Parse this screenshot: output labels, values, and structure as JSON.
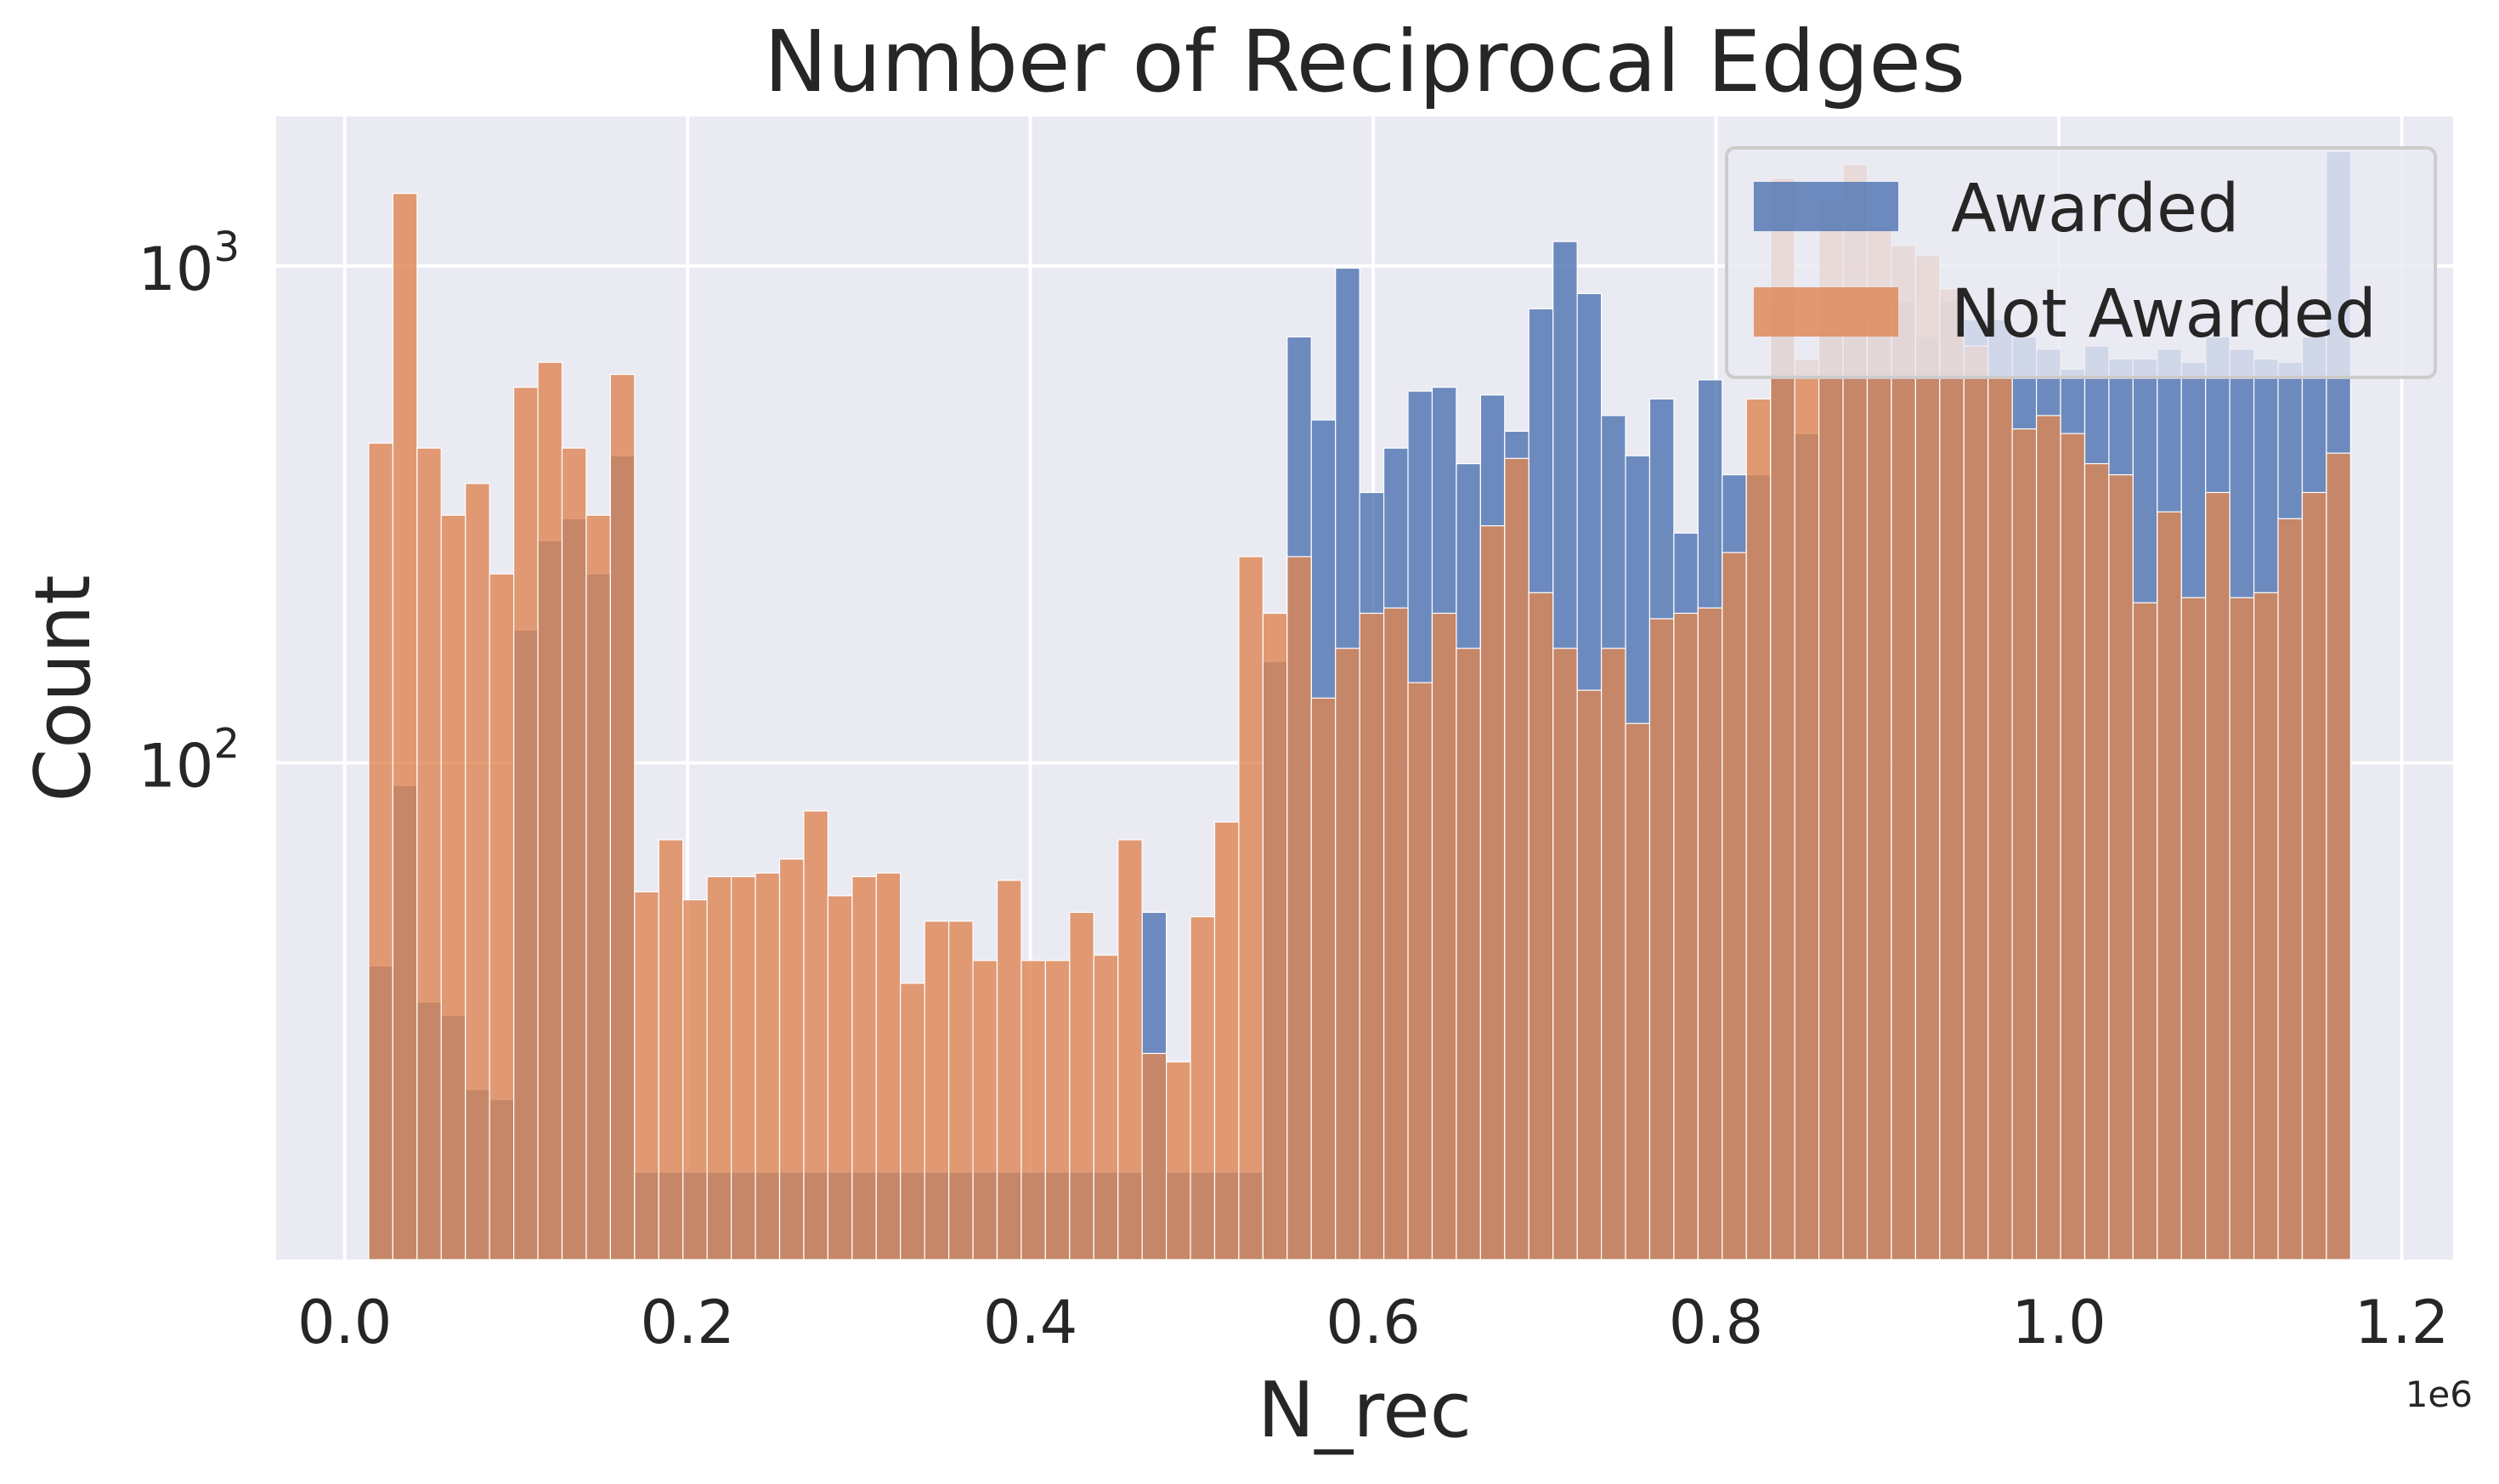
{
  "chart_data": {
    "type": "bar",
    "title": "Number of Reciprocal Edges",
    "xlabel": "N_rec",
    "ylabel": "Count",
    "x_offset_label": "1e6",
    "x_scale_multiplier": 1000000,
    "xlim": [
      -0.04,
      1.23
    ],
    "xticks": [
      0.0,
      0.2,
      0.4,
      0.6,
      0.8,
      1.0,
      1.2
    ],
    "xtick_labels": [
      "0.0",
      "0.2",
      "0.4",
      "0.6",
      "0.8",
      "1.0",
      "1.2"
    ],
    "yscale": "log",
    "ylim": [
      10,
      2000
    ],
    "yticks": [
      100,
      1000
    ],
    "ytick_labels": [
      {
        "base": "10",
        "exp": "2"
      },
      {
        "base": "10",
        "exp": "3"
      }
    ],
    "grid": true,
    "legend_position": "top-right",
    "bins": {
      "start": 0.014,
      "width": 0.0141,
      "count": 82
    },
    "series": [
      {
        "name": "Awarded",
        "color": "#4c72b0",
        "values": [
          39,
          90,
          33,
          31,
          22,
          21,
          185,
          280,
          310,
          240,
          415,
          15,
          15,
          15,
          15,
          15,
          15,
          15,
          15,
          15,
          15,
          15,
          15,
          15,
          15,
          15,
          15,
          15,
          15,
          15,
          15,
          15,
          50,
          15,
          15,
          15,
          15,
          160,
          720,
          490,
          990,
          350,
          430,
          560,
          570,
          400,
          550,
          465,
          820,
          1120,
          880,
          500,
          415,
          540,
          290,
          590,
          380,
          380,
          840,
          460,
          740,
          780,
          850,
          850,
          720,
          850,
          780,
          780,
          720,
          680,
          620,
          690,
          650,
          650,
          680,
          640,
          720,
          680,
          650,
          640,
          720,
          1700
        ]
      },
      {
        "name": "Not Awarded",
        "color": "#dd8452",
        "values": [
          440,
          1400,
          430,
          315,
          365,
          240,
          570,
          640,
          430,
          315,
          605,
          55,
          70,
          53,
          59,
          59,
          60,
          64,
          80,
          54,
          59,
          60,
          36,
          48,
          48,
          40,
          58,
          40,
          40,
          50,
          41,
          70,
          26,
          25,
          49,
          76,
          260,
          200,
          260,
          135,
          170,
          200,
          205,
          145,
          200,
          170,
          300,
          410,
          220,
          170,
          140,
          170,
          120,
          195,
          200,
          205,
          265,
          540,
          1500,
          650,
          1350,
          1600,
          1200,
          1100,
          1050,
          900,
          690,
          600,
          470,
          500,
          460,
          400,
          380,
          210,
          320,
          215,
          350,
          215,
          220,
          310,
          350,
          420
        ]
      }
    ]
  }
}
